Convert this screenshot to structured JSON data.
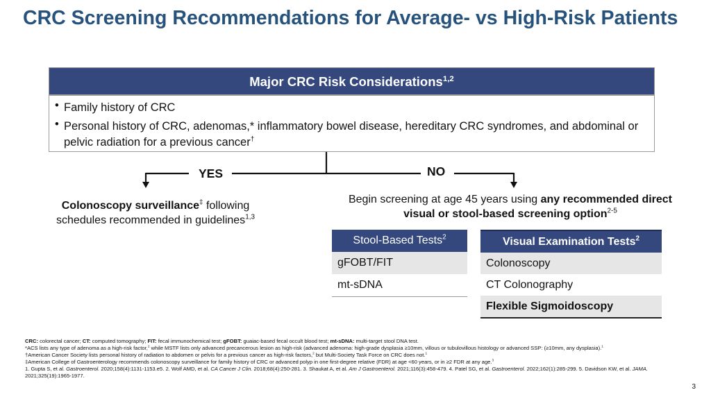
{
  "title": "CRC Screening Recommendations for Average- vs High-Risk Patients",
  "risk_box": {
    "heading": "Major CRC Risk Considerations",
    "heading_sup": "1,2",
    "bullets": [
      {
        "text": "Family history of CRC"
      },
      {
        "text": "Personal history of CRC, adenomas,* inflammatory bowel disease, hereditary CRC syndromes, and abdominal or pelvic radiation for a previous cancer",
        "sup": "†"
      }
    ]
  },
  "yes_branch": {
    "label": "YES",
    "bold_text": "Colonoscopy surveillance",
    "sup": "‡",
    "text": "following schedules recommended in guidelines",
    "ref_sup": "1,3"
  },
  "no_branch": {
    "label": "NO",
    "text": "Begin screening at age 45 years using",
    "bold_text": "any recommended direct visual or stool-based screening option",
    "ref_sup": "2-5"
  },
  "stool_table": {
    "header": "Stool-Based Tests",
    "header_sup": "2",
    "rows": [
      "gFOBT/FIT",
      "mt-sDNA"
    ]
  },
  "visual_table": {
    "header": "Visual Examination Tests",
    "header_sup": "2",
    "rows": [
      "Colonoscopy",
      "CT Colonography",
      "Flexible Sigmoidoscopy"
    ]
  },
  "notes": {
    "abbreviations": [
      {
        "term": "CRC:",
        "definition": "colorectal cancer;"
      },
      {
        "term": "CT:",
        "definition": "computed tomography;"
      },
      {
        "term": "FIT:",
        "definition": "fecal immunochemical test;"
      },
      {
        "term": "gFOBT:",
        "definition": "guaiac-based fecal occult blood test;"
      },
      {
        "term": "mt-sDNA:",
        "definition": "multi-target stool DNA test."
      }
    ],
    "footnotes": [
      [
        "*ACS lists any type of adenoma as a high-risk factor,",
        "2",
        "while MSTF lists only advanced precancerous lesion as high-risk (advanced adenoma: high-grade dysplasia ≥10mm, villous or tubulovillous histology or advanced SSP: (≥10mm, any dysplasia).",
        "1"
      ],
      [
        "†American Cancer Society lists personal history of radiation to abdomen or pelvis for a previous cancer as high-risk factors,",
        "2",
        "but Multi-Society Task Force on CRC does not.",
        "1"
      ],
      [
        "‡American College of Gastroenterology recommends colonoscopy surveillance for family history of CRC or advanced polyp in one first-degree relative (FDR) at age <60 years, or in ≥2 FDR at any age.",
        "3"
      ]
    ],
    "references": [
      {
        "number": "1.",
        "authors": "Gupta S, et al.",
        "journal": "Gastroenterol.",
        "citation": "2020;158(4):1131-1153.e5."
      },
      {
        "number": "2.",
        "authors": "Wolf AMD, et al.",
        "journal": "CA Cancer J Clin.",
        "citation": "2018;68(4):250-281."
      },
      {
        "number": "3.",
        "authors": "Shaukat A, et al.",
        "journal": "Am J Gastroenterol.",
        "citation": "2021;116(3):458-479."
      },
      {
        "number": "4.",
        "authors": "Patel SG, et al.",
        "journal": "Gastroenterol.",
        "citation": "2022;162(1):285-299."
      },
      {
        "number": "5.",
        "authors": "Davidson KW, et al.",
        "journal": "JAMA.",
        "citation": "2021;325(19):1965-1977."
      }
    ]
  },
  "page_number": "3"
}
